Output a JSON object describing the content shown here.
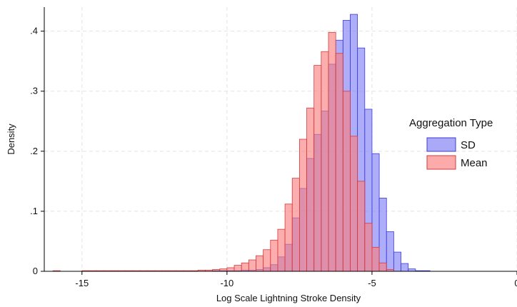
{
  "chart_data": {
    "type": "histogram",
    "xlabel": "Log Scale Lightning Stroke Density",
    "ylabel": "Density",
    "xlim": [
      -16.3,
      0
    ],
    "ylim": [
      0,
      0.44
    ],
    "x_ticks": [
      -15,
      -10,
      -5,
      0
    ],
    "x_tick_labels": [
      "-15",
      "-10",
      "-5",
      "0"
    ],
    "y_ticks": [
      0,
      0.1,
      0.2,
      0.3,
      0.4
    ],
    "y_tick_labels": [
      "0",
      ".1",
      ".2",
      ".3",
      ".4"
    ],
    "grid": true,
    "legend": {
      "title": "Aggregation Type",
      "placement": "right"
    },
    "bin_width": 0.25,
    "series": [
      {
        "name": "SD",
        "color": "#7b7bf5",
        "edge": "#3d3dd6",
        "bins_start": [
          -10.5,
          -10.25,
          -10,
          -9.75,
          -9.5,
          -9.25,
          -9,
          -8.75,
          -8.5,
          -8.25,
          -8,
          -7.75,
          -7.5,
          -7.25,
          -7,
          -6.75,
          -6.5,
          -6.25,
          -6,
          -5.75,
          -5.5,
          -5.25,
          -5,
          -4.75,
          -4.5,
          -4.25,
          -4,
          -3.75,
          -3.5,
          -3.25
        ],
        "values": [
          0.001,
          0.001,
          0.001,
          0.001,
          0.002,
          0.002,
          0.003,
          0.006,
          0.011,
          0.024,
          0.045,
          0.089,
          0.138,
          0.188,
          0.228,
          0.267,
          0.345,
          0.385,
          0.418,
          0.428,
          0.372,
          0.27,
          0.196,
          0.122,
          0.066,
          0.032,
          0.013,
          0.004,
          0.001,
          0.001
        ]
      },
      {
        "name": "Mean",
        "color": "#fa7d7d",
        "edge": "#d63b3b",
        "bins_start": [
          -16,
          -15,
          -14.75,
          -14.5,
          -14.25,
          -14,
          -13.75,
          -13.5,
          -13.25,
          -13,
          -12.75,
          -12.5,
          -12.25,
          -12,
          -11.75,
          -11.5,
          -11.25,
          -11,
          -10.75,
          -10.5,
          -10.25,
          -10,
          -9.75,
          -9.5,
          -9.25,
          -9,
          -8.75,
          -8.5,
          -8.25,
          -8,
          -7.75,
          -7.5,
          -7.25,
          -7,
          -6.75,
          -6.5,
          -6.25,
          -6,
          -5.75,
          -5.5,
          -5.25,
          -5,
          -4.75,
          -4.5
        ],
        "values": [
          0.001,
          0.001,
          0.001,
          0.001,
          0.001,
          0.001,
          0.001,
          0.001,
          0.001,
          0.001,
          0.001,
          0.001,
          0.001,
          0.001,
          0.001,
          0.001,
          0.001,
          0.002,
          0.002,
          0.003,
          0.004,
          0.006,
          0.01,
          0.014,
          0.019,
          0.026,
          0.036,
          0.052,
          0.07,
          0.112,
          0.155,
          0.22,
          0.272,
          0.343,
          0.366,
          0.398,
          0.363,
          0.3,
          0.225,
          0.15,
          0.08,
          0.04,
          0.014,
          0.003
        ]
      }
    ]
  }
}
